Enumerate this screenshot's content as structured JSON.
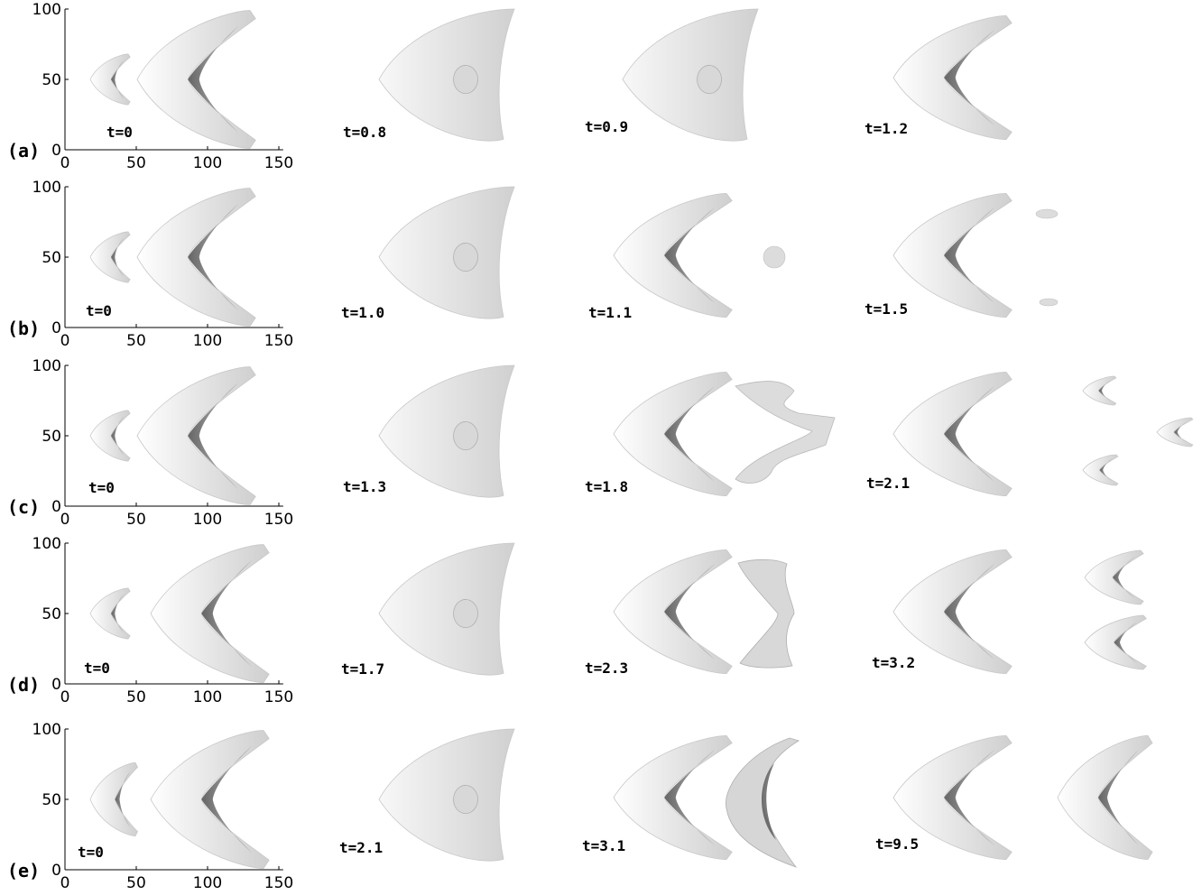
{
  "figure": {
    "axes": {
      "y_ticks": [
        "100",
        "50",
        "0"
      ],
      "x_ticks": [
        "0",
        "50",
        "100",
        "150"
      ]
    },
    "rows": [
      {
        "label": "(a)",
        "panels": [
          {
            "time": "t=0",
            "shapes": [
              "small-crescent",
              "large-crescent"
            ]
          },
          {
            "time": "t=0.8",
            "shapes": [
              "merged-crescent"
            ]
          },
          {
            "time": "t=0.9",
            "shapes": [
              "merged-crescent-notched"
            ]
          },
          {
            "time": "t=1.2",
            "shapes": [
              "large-crescent"
            ]
          }
        ]
      },
      {
        "label": "(b)",
        "panels": [
          {
            "time": "t=0",
            "shapes": [
              "small-crescent",
              "large-crescent"
            ]
          },
          {
            "time": "t=1.0",
            "shapes": [
              "merged-crescent"
            ]
          },
          {
            "time": "t=1.1",
            "shapes": [
              "large-crescent",
              "tiny-fragment"
            ]
          },
          {
            "time": "t=1.5",
            "shapes": [
              "large-crescent",
              "tiny-fragment-top",
              "tiny-fragment-bottom"
            ]
          }
        ]
      },
      {
        "label": "(c)",
        "panels": [
          {
            "time": "t=0",
            "shapes": [
              "small-crescent",
              "large-crescent"
            ]
          },
          {
            "time": "t=1.3",
            "shapes": [
              "merged-crescent"
            ]
          },
          {
            "time": "t=1.8",
            "shapes": [
              "large-crescent",
              "broken-arc"
            ]
          },
          {
            "time": "t=2.1",
            "shapes": [
              "large-crescent",
              "small-crescent-top",
              "small-crescent-bottom",
              "small-crescent-right"
            ]
          }
        ]
      },
      {
        "label": "(d)",
        "panels": [
          {
            "time": "t=0",
            "shapes": [
              "small-crescent",
              "large-crescent"
            ]
          },
          {
            "time": "t=1.7",
            "shapes": [
              "merged-crescent"
            ]
          },
          {
            "time": "t=2.3",
            "shapes": [
              "large-crescent",
              "pinched-arc"
            ]
          },
          {
            "time": "t=3.2",
            "shapes": [
              "large-crescent",
              "medium-crescent-top",
              "medium-crescent-bottom"
            ]
          }
        ]
      },
      {
        "label": "(e)",
        "panels": [
          {
            "time": "t=0",
            "shapes": [
              "medium-crescent",
              "large-crescent"
            ]
          },
          {
            "time": "t=2.1",
            "shapes": [
              "merged-crescent"
            ]
          },
          {
            "time": "t=3.1",
            "shapes": [
              "large-crescent",
              "thick-arc"
            ]
          },
          {
            "time": "t=9.5",
            "shapes": [
              "large-crescent",
              "large-crescent"
            ]
          }
        ]
      }
    ]
  }
}
